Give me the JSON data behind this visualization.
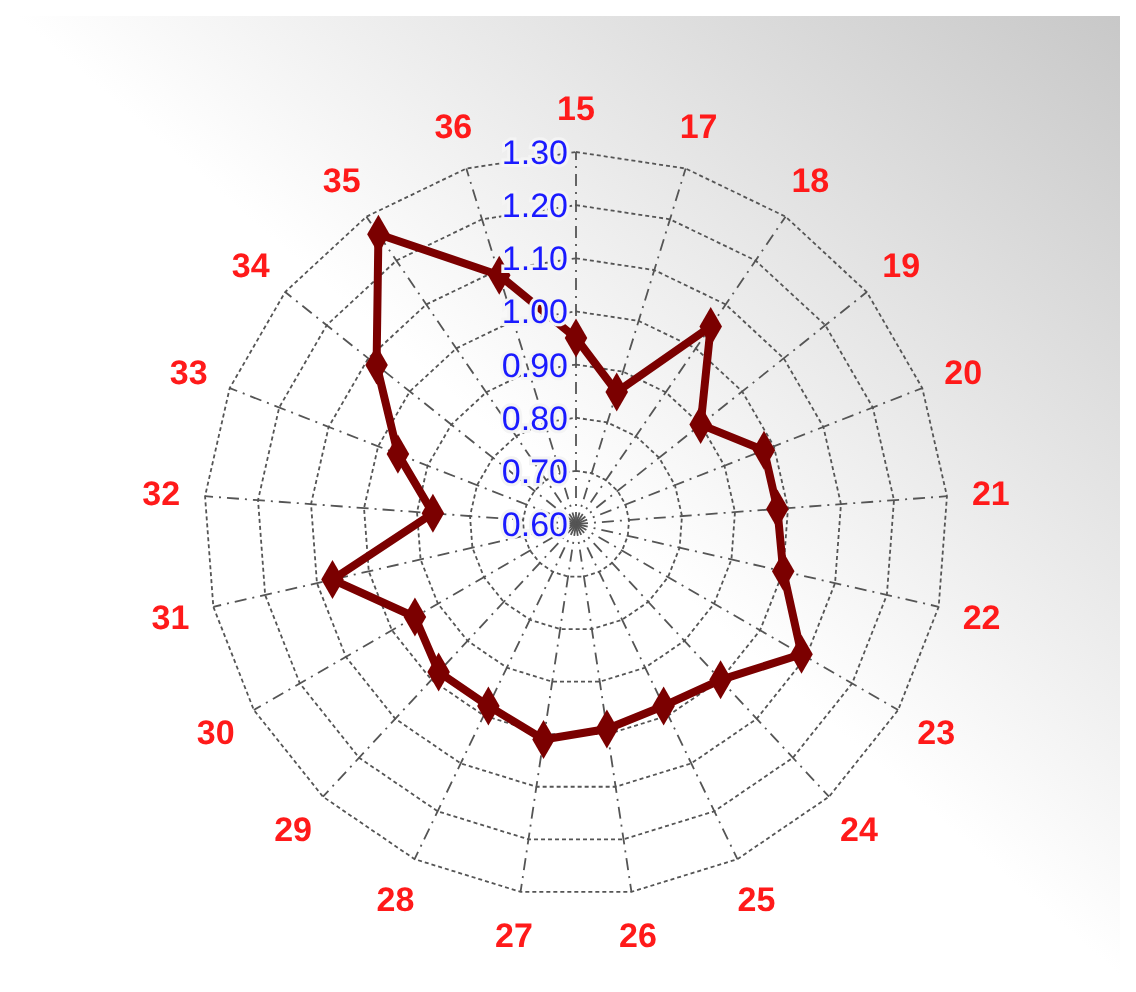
{
  "chart_data": {
    "type": "radar",
    "categories": [
      "15",
      "17",
      "18",
      "19",
      "20",
      "21",
      "22",
      "23",
      "24",
      "25",
      "26",
      "27",
      "28",
      "29",
      "30",
      "31",
      "32",
      "33",
      "34",
      "35",
      "36"
    ],
    "series": [
      {
        "color": "#7b0000",
        "values": [
          0.95,
          0.86,
          1.05,
          0.9,
          0.98,
          0.98,
          1.0,
          1.09,
          1.0,
          0.98,
          0.99,
          1.01,
          0.98,
          0.98,
          0.95,
          1.07,
          0.87,
          0.96,
          1.08,
          1.26,
          1.09
        ]
      }
    ],
    "ylim": [
      0.6,
      1.3
    ],
    "yticks": [
      {
        "value": 0.6,
        "label": "0.60"
      },
      {
        "value": 0.7,
        "label": "0.70"
      },
      {
        "value": 0.8,
        "label": "0.80"
      },
      {
        "value": 0.9,
        "label": "0.90"
      },
      {
        "value": 1.0,
        "label": "1.00"
      },
      {
        "value": 1.1,
        "label": "1.10"
      },
      {
        "value": 1.2,
        "label": "1.20"
      },
      {
        "value": 1.3,
        "label": "1.30"
      }
    ],
    "grid": true,
    "marker": "diamond",
    "line_style": "solid"
  }
}
